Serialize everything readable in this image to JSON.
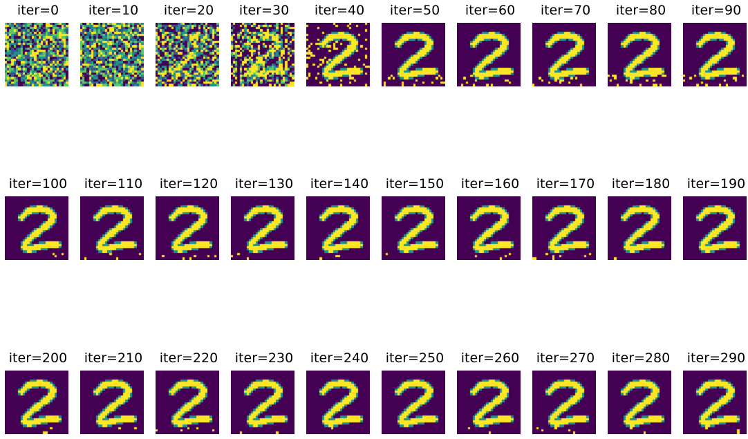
{
  "colors": {
    "background": "#ffffff",
    "colormap": [
      "#440154",
      "#3b528b",
      "#21918c",
      "#5ec962",
      "#fde725"
    ]
  },
  "panels": [
    {
      "title": "iter=0"
    },
    {
      "title": "iter=10"
    },
    {
      "title": "iter=20"
    },
    {
      "title": "iter=30"
    },
    {
      "title": "iter=40"
    },
    {
      "title": "iter=50"
    },
    {
      "title": "iter=60"
    },
    {
      "title": "iter=70"
    },
    {
      "title": "iter=80"
    },
    {
      "title": "iter=90"
    },
    {
      "title": "iter=100"
    },
    {
      "title": "iter=110"
    },
    {
      "title": "iter=120"
    },
    {
      "title": "iter=130"
    },
    {
      "title": "iter=140"
    },
    {
      "title": "iter=150"
    },
    {
      "title": "iter=160"
    },
    {
      "title": "iter=170"
    },
    {
      "title": "iter=180"
    },
    {
      "title": "iter=190"
    },
    {
      "title": "iter=200"
    },
    {
      "title": "iter=210"
    },
    {
      "title": "iter=220"
    },
    {
      "title": "iter=230"
    },
    {
      "title": "iter=240"
    },
    {
      "title": "iter=250"
    },
    {
      "title": "iter=260"
    },
    {
      "title": "iter=270"
    },
    {
      "title": "iter=280"
    },
    {
      "title": "iter=290"
    }
  ]
}
